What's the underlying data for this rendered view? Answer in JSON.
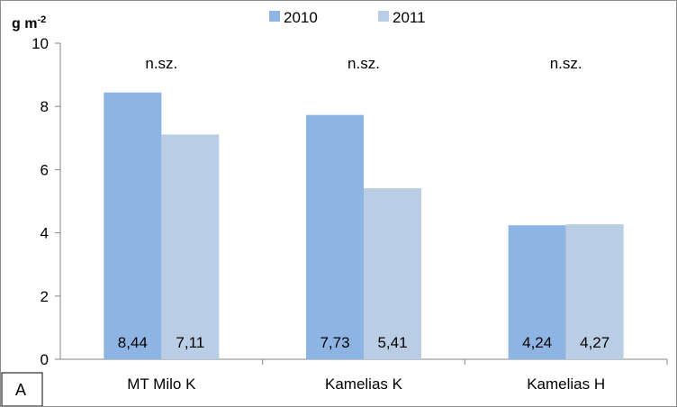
{
  "chart_data": {
    "type": "bar",
    "ylabel": "g m",
    "ylabel_superscript": "-2",
    "ylim": [
      0,
      10
    ],
    "yticks": [
      0,
      2,
      4,
      6,
      8,
      10
    ],
    "categories": [
      "MT Milo K",
      "Kamelias K",
      "Kamelias H"
    ],
    "series": [
      {
        "name": "2010",
        "values": [
          8.44,
          7.73,
          4.24
        ],
        "value_labels": [
          "8,44",
          "7,73",
          "4,24"
        ],
        "color": "#8eb4e3"
      },
      {
        "name": "2011",
        "values": [
          7.11,
          5.41,
          4.27
        ],
        "value_labels": [
          "7,11",
          "5,41",
          "4,27"
        ],
        "color": "#b9cde5"
      }
    ],
    "annotations": [
      "n.sz.",
      "n.sz.",
      "n.sz."
    ],
    "legend_position": "top-center",
    "grid": false,
    "panel_label": "A"
  }
}
